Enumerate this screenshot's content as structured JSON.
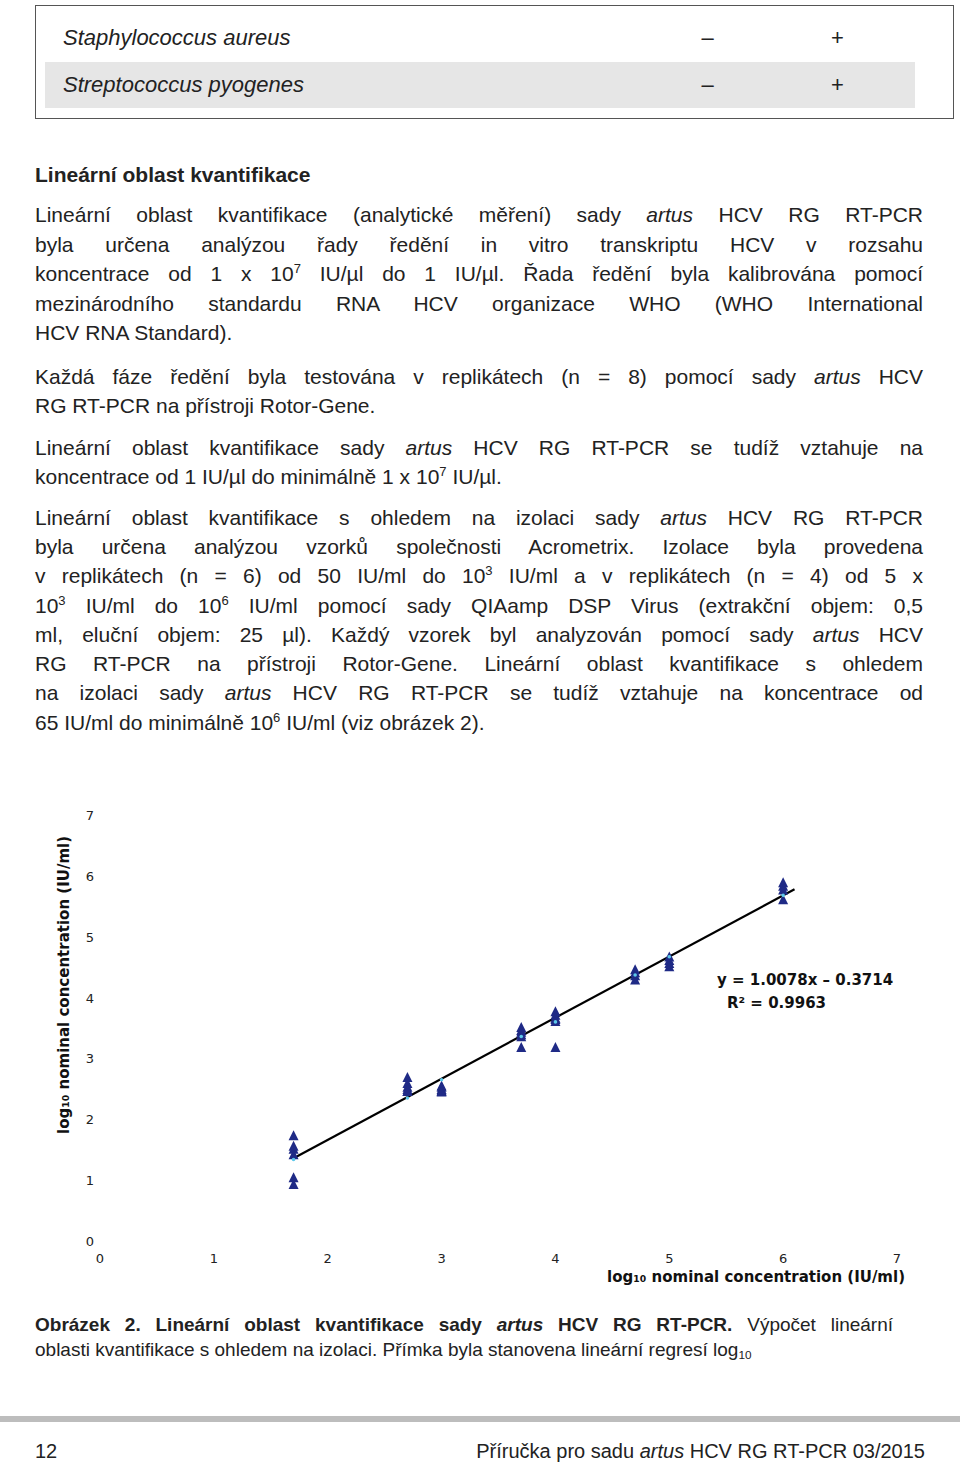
{
  "table": {
    "rows": [
      [
        "Staphylococcus aureus",
        "–",
        "+"
      ],
      [
        "Streptococcus pyogenes",
        "–",
        "+"
      ]
    ]
  },
  "heading": "Lineární oblast kvantifikace",
  "paragraphs": [
    [
      [
        "Lineární oblast kvantifikace (analytické měření) sady ",
        {
          "text": "artus",
          "style": "italic"
        },
        " HCV RG RT-PCR"
      ],
      [
        "byla určena analýzou řady ředění in vitro transkriptu HCV v rozsahu"
      ],
      [
        "koncentrace od 1 x 10",
        {
          "text": "7",
          "style": "sup"
        },
        " IU/µl do 1 IU/µl. Řada ředění byla kalibrována pomocí"
      ],
      [
        "mezinárodního standardu RNA HCV organizace WHO (WHO International"
      ],
      [
        "HCV RNA Standard)."
      ]
    ],
    [
      [
        "Každá fáze ředění byla testována v replikátech (n = 8) pomocí sady ",
        {
          "text": "artus",
          "style": "italic"
        },
        " HCV"
      ],
      [
        "RG RT-PCR na přístroji Rotor-Gene."
      ]
    ],
    [
      [
        "Lineární oblast kvantifikace sady ",
        {
          "text": "artus",
          "style": "italic"
        },
        " HCV RG RT-PCR se tudíž vztahuje na"
      ],
      [
        "koncentrace od 1 IU/µl do minimálně 1 x 10",
        {
          "text": "7",
          "style": "sup"
        },
        " IU/µl."
      ]
    ],
    [
      [
        "Lineární oblast kvantifikace s ohledem na izolaci sady ",
        {
          "text": "artus",
          "style": "italic"
        },
        " HCV RG RT-PCR"
      ],
      [
        "byla určena analýzou vzorků společnosti Acrometrix. Izolace byla provedena"
      ],
      [
        "v replikátech (n = 6) od 50 IU/ml do 10",
        {
          "text": "3",
          "style": "sup"
        },
        " IU/ml a v replikátech (n = 4) od 5 x"
      ],
      [
        "10",
        {
          "text": "3",
          "style": "sup"
        },
        " IU/ml do 10",
        {
          "text": "6",
          "style": "sup"
        },
        " IU/ml pomocí sady QIAamp DSP Virus (extrakční objem: 0,5"
      ],
      [
        "ml, eluční objem: 25 µl). Každý vzorek byl analyzován pomocí sady ",
        {
          "text": "artus",
          "style": "italic"
        },
        " HCV"
      ],
      [
        "RG RT-PCR na přístroji Rotor-Gene. Lineární oblast kvantifikace s ohledem"
      ],
      [
        "na izolaci sady ",
        {
          "text": "artus",
          "style": "italic"
        },
        " HCV RG RT-PCR se tudíž vztahuje na koncentrace od"
      ],
      [
        "65 IU/ml do minimálně 10",
        {
          "text": "6",
          "style": "sup"
        },
        " IU/ml (viz obrázek 2)."
      ]
    ]
  ],
  "chart_data": {
    "type": "scatter",
    "x_label": "log₁₀ nominal concentration (IU/ml)",
    "y_label": "log₁₀ nominal concentration (IU/ml)",
    "annotations": [
      "y = 1.0078x – 0.3714",
      "R² = 0.9963"
    ],
    "xlim": [
      0,
      7
    ],
    "ylim": [
      0,
      7
    ],
    "xticks": [
      0,
      1,
      2,
      3,
      4,
      5,
      6,
      7
    ],
    "yticks": [
      0,
      1,
      2,
      3,
      4,
      5,
      6,
      7
    ],
    "grid": false,
    "series": [
      {
        "type": "line",
        "color": "#000000",
        "line_style": "solid",
        "x": [
          1.7,
          6.1
        ],
        "values": [
          1.36,
          5.78
        ]
      },
      {
        "type": "scatter",
        "color": "#1f2a86",
        "marker": "triangle",
        "x": [
          1.7,
          1.7,
          1.7,
          1.7,
          1.7,
          1.7,
          2.7,
          2.7,
          2.7,
          2.7,
          2.7,
          2.7,
          3.0,
          3.0,
          3.0,
          3.0,
          3.0,
          3.0,
          3.7,
          3.7,
          3.7,
          3.7,
          3.7,
          3.7,
          4.0,
          4.0,
          4.0,
          4.0,
          4.0,
          4.0,
          4.7,
          4.7,
          4.7,
          4.7,
          5.0,
          5.0,
          5.0,
          5.0,
          6.0,
          6.0,
          6.0,
          6.0
        ],
        "values": [
          1.72,
          1.55,
          1.5,
          1.41,
          1.03,
          0.92,
          2.68,
          2.58,
          2.52,
          2.48,
          2.45,
          2.45,
          2.54,
          2.52,
          2.48,
          2.46,
          2.45,
          2.44,
          3.5,
          3.45,
          3.42,
          3.38,
          3.35,
          3.17,
          3.76,
          3.7,
          3.65,
          3.63,
          3.6,
          3.17,
          4.45,
          4.4,
          4.35,
          4.28,
          4.66,
          4.6,
          4.55,
          4.5,
          5.88,
          5.82,
          5.76,
          5.6
        ]
      },
      {
        "type": "scatter",
        "color": "#5cc8ea",
        "marker": "dot",
        "x": [
          1.7,
          2.7,
          3.0,
          3.7,
          4.0,
          4.7,
          5.0,
          6.0
        ],
        "values": [
          1.34,
          2.35,
          2.65,
          3.36,
          3.6,
          4.37,
          4.67,
          5.68
        ]
      }
    ]
  },
  "caption": [
    [
      {
        "text": "Obrázek 2. Lineární oblast kvantifikace sady ",
        "style": "bold"
      },
      {
        "text": "artus",
        "style": "bolditalic"
      },
      {
        "text": " HCV RG RT-PCR.",
        "style": "bold"
      },
      " Výpočet lineární"
    ],
    [
      "oblasti kvantifikace s ohledem na izolaci. Přímka byla stanovena lineární regresí log",
      {
        "text": "10",
        "style": "sub"
      }
    ]
  ],
  "footer": {
    "page": "12",
    "text": [
      "Příručka pro sadu ",
      {
        "text": "artus",
        "style": "italic"
      },
      " HCV RG RT-PCR 03/2015"
    ]
  }
}
